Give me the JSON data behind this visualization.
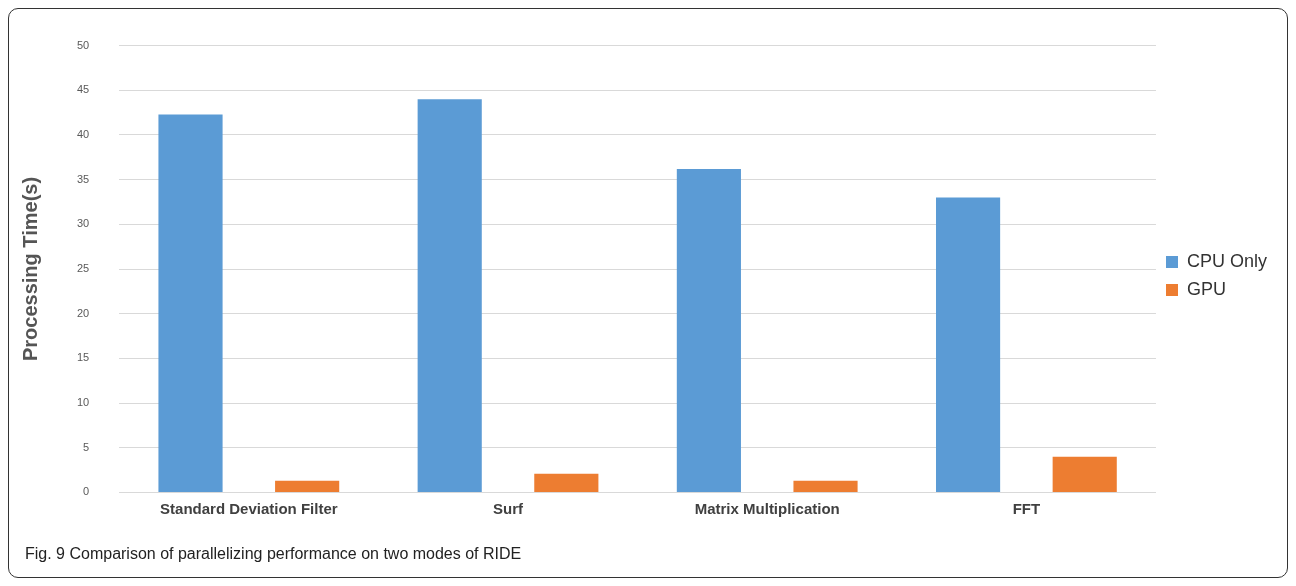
{
  "chart_data": {
    "type": "bar",
    "ylabel": "Processing Time(s)",
    "categories": [
      "Standard Deviation Filter",
      "Surf",
      "Matrix Multiplication",
      "FFT"
    ],
    "series": [
      {
        "name": "CPU Only",
        "color": "#5b9bd5",
        "values": [
          42.3,
          44.0,
          36.2,
          33.0
        ]
      },
      {
        "name": "GPU",
        "color": "#ed7d31",
        "values": [
          1.3,
          2.1,
          1.3,
          4.0
        ]
      }
    ],
    "ylim": [
      0,
      50
    ],
    "yticks": [
      0,
      5,
      10,
      15,
      20,
      25,
      30,
      35,
      40,
      45,
      50
    ],
    "grid": "y",
    "legend": "right",
    "annotations": [
      "Fig. 9 Comparison of parallelizing performance on two modes of RIDE"
    ]
  }
}
